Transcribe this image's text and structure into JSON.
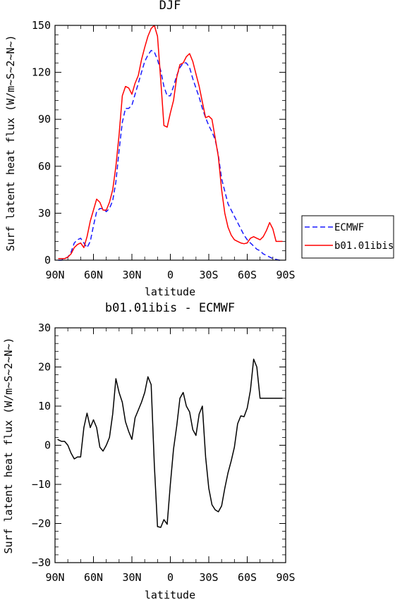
{
  "chart_data": [
    {
      "type": "line",
      "title": "DJF",
      "xlabel": "latitude",
      "ylabel": "Surf latent heat flux (W/m~S~2~N~)",
      "xlim": [
        90,
        -90
      ],
      "ylim": [
        0,
        150
      ],
      "x_tick_values": [
        90,
        60,
        30,
        0,
        -30,
        -60,
        -90
      ],
      "x_tick_labels": [
        "90N",
        "60N",
        "30N",
        "0",
        "30S",
        "60S",
        "90S"
      ],
      "y_tick_values": [
        0,
        30,
        60,
        90,
        120,
        150
      ],
      "y_tick_labels": [
        "0",
        "30",
        "60",
        "90",
        "120",
        "150"
      ],
      "legend": {
        "placement": "right",
        "entries": [
          "ECMWF",
          "b01.01ibis"
        ]
      },
      "series": [
        {
          "name": "ECMWF",
          "color": "#1a1aff",
          "dash": true,
          "x": [
            87.5,
            85,
            82.5,
            80,
            77.5,
            75,
            72.5,
            70,
            67.5,
            65,
            62.5,
            60,
            57.5,
            55,
            52.5,
            50,
            47.5,
            45,
            42.5,
            40,
            37.5,
            35,
            32.5,
            30,
            27.5,
            25,
            22.5,
            20,
            17.5,
            15,
            12.5,
            10,
            7.5,
            5,
            2.5,
            0,
            -2.5,
            -5,
            -7.5,
            -10,
            -12.5,
            -15,
            -17.5,
            -20,
            -22.5,
            -25,
            -27.5,
            -30,
            -32.5,
            -35,
            -37.5,
            -40,
            -42.5,
            -45,
            -47.5,
            -50,
            -52.5,
            -55,
            -57.5,
            -60,
            -62.5,
            -65,
            -67.5,
            -70,
            -72.5,
            -75,
            -77.5,
            -80,
            -82.5,
            -85,
            -87.5
          ],
          "y": [
            0,
            0,
            1,
            2,
            5,
            11,
            13,
            14,
            11,
            8,
            12,
            22,
            31,
            33,
            33,
            31,
            33,
            38,
            50,
            70,
            88,
            97,
            97,
            99,
            106,
            113,
            120,
            127,
            131,
            134,
            133,
            128,
            121,
            111,
            105,
            105,
            111,
            118,
            123,
            126,
            126,
            123,
            116,
            110,
            104,
            97,
            91,
            86,
            82,
            77,
            67,
            52,
            44,
            36,
            32,
            28,
            24,
            20,
            16,
            13,
            11,
            9,
            7,
            6,
            4,
            3,
            2,
            1,
            0.5,
            0,
            0
          ]
        },
        {
          "name": "b01.01ibis",
          "color": "#ff0000",
          "dash": false,
          "x": [
            87.5,
            85,
            82.5,
            80,
            77.5,
            75,
            72.5,
            70,
            67.5,
            65,
            62.5,
            60,
            57.5,
            55,
            52.5,
            50,
            47.5,
            45,
            42.5,
            40,
            37.5,
            35,
            32.5,
            30,
            27.5,
            25,
            22.5,
            20,
            17.5,
            15,
            12.5,
            10,
            7.5,
            5,
            2.5,
            0,
            -2.5,
            -5,
            -7.5,
            -10,
            -12.5,
            -15,
            -17.5,
            -20,
            -22.5,
            -25,
            -27.5,
            -30,
            -32.5,
            -35,
            -37.5,
            -40,
            -42.5,
            -45,
            -47.5,
            -50,
            -52.5,
            -55,
            -57.5,
            -60,
            -62.5,
            -65,
            -67.5,
            -70,
            -72.5,
            -75,
            -77.5,
            -80,
            -82.5,
            -85,
            -87.5
          ],
          "y": [
            1,
            1,
            1,
            2,
            4,
            8,
            10,
            11,
            8,
            15,
            25,
            32,
            39,
            37,
            32,
            32,
            37,
            45,
            60,
            80,
            105,
            111,
            110,
            106,
            113,
            118,
            128,
            136,
            143,
            148,
            150,
            143,
            115,
            86,
            85,
            94,
            102,
            117,
            125,
            126,
            130,
            132,
            127,
            119,
            111,
            101,
            91,
            92,
            90,
            78,
            66,
            45,
            30,
            21,
            16,
            13,
            12,
            11,
            10.5,
            11,
            14,
            15,
            14,
            13,
            15,
            19,
            24,
            20,
            12,
            12,
            12
          ]
        }
      ]
    },
    {
      "type": "line",
      "title": "b01.01ibis - ECMWF",
      "xlabel": "latitude",
      "ylabel": "Surf latent heat flux (W/m~S~2~N~)",
      "xlim": [
        90,
        -90
      ],
      "ylim": [
        -30,
        30
      ],
      "x_tick_values": [
        90,
        60,
        30,
        0,
        -30,
        -60,
        -90
      ],
      "x_tick_labels": [
        "90N",
        "60N",
        "30N",
        "0",
        "30S",
        "60S",
        "90S"
      ],
      "y_tick_values": [
        -30,
        -20,
        -10,
        0,
        10,
        20,
        30
      ],
      "y_tick_labels": [
        "−30",
        "−20",
        "−10",
        "0",
        "10",
        "20",
        "30"
      ],
      "series": [
        {
          "color": "#000000",
          "dash": false,
          "x": [
            88,
            85,
            82.5,
            80,
            77.5,
            75,
            72.5,
            70,
            67.5,
            65,
            62.5,
            60,
            57.5,
            55,
            52.5,
            50,
            47.5,
            45,
            42.5,
            40,
            37.5,
            35,
            32.5,
            30,
            27.5,
            25,
            22.5,
            20,
            17.5,
            15,
            12.5,
            10,
            7.5,
            5,
            2.5,
            0,
            -2.5,
            -5,
            -7.5,
            -10,
            -12.5,
            -15,
            -17.5,
            -20,
            -22.5,
            -25,
            -27.5,
            -30,
            -32.5,
            -35,
            -37.5,
            -40,
            -42.5,
            -45,
            -47.5,
            -50,
            -52.5,
            -55,
            -57.5,
            -60,
            -62.5,
            -65,
            -67.5,
            -70,
            -72.5,
            -75,
            -77.5,
            -80,
            -82.5,
            -85,
            -87.5
          ],
          "y": [
            1.5,
            1,
            1,
            0,
            -2,
            -3.5,
            -3,
            -3,
            4.5,
            8.2,
            4.5,
            6.5,
            4.5,
            -0.5,
            -1.5,
            0,
            2,
            8,
            17,
            13.5,
            11,
            6,
            3.5,
            1.5,
            7,
            9,
            11,
            13.5,
            17.5,
            15.5,
            -5,
            -20.8,
            -21,
            -19,
            -20.2,
            -10,
            -1,
            5,
            12,
            13.5,
            10,
            8.5,
            4,
            2.5,
            8,
            10,
            -3,
            -11,
            -15.2,
            -16.5,
            -17,
            -15.5,
            -11,
            -7,
            -4,
            -0.5,
            5.5,
            7.5,
            7.3,
            9.5,
            14,
            22,
            20,
            12,
            12,
            12,
            12,
            12,
            12,
            12,
            12
          ]
        }
      ]
    }
  ]
}
